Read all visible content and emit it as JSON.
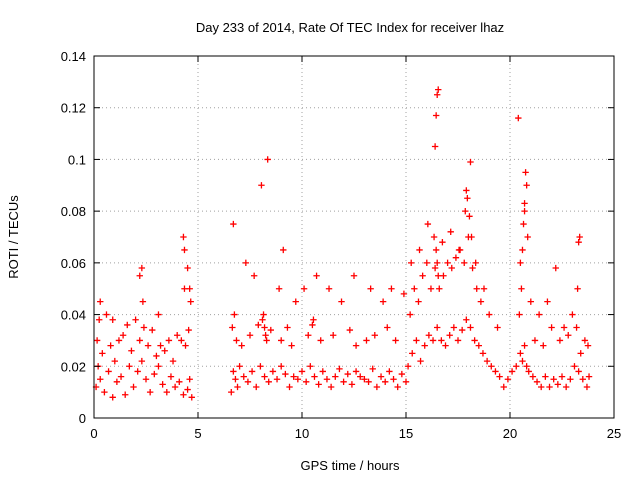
{
  "chart_data": {
    "type": "scatter",
    "title": "Day 233 of 2014, Rate Of TEC Index for receiver lhaz",
    "xlabel": "GPS time / hours",
    "ylabel": "ROTI / TECUs",
    "xlim": [
      0,
      25
    ],
    "ylim": [
      0,
      0.14
    ],
    "xticks": [
      0,
      5,
      10,
      15,
      20,
      25
    ],
    "xtick_labels": [
      "0",
      "5",
      "10",
      "15",
      "20",
      "25"
    ],
    "yticks": [
      0,
      0.02,
      0.04,
      0.06,
      0.08,
      0.1,
      0.12,
      0.14
    ],
    "ytick_labels": [
      "0",
      "0.02",
      "0.04",
      "0.06",
      "0.08",
      "0.1",
      "0.12",
      "0.14"
    ],
    "grid": true,
    "marker": "plus",
    "color": "#ff0000",
    "series": [
      {
        "x": [
          0.1,
          0.2,
          0.3,
          0.5,
          0.7,
          0.9,
          1.1,
          1.3,
          1.5,
          1.7,
          1.9,
          2.1,
          2.3,
          2.5,
          2.7,
          2.9,
          3.1,
          3.3,
          3.5,
          3.7,
          3.9,
          4.1,
          4.3,
          4.5,
          4.6,
          4.7,
          0.15,
          0.4,
          0.8,
          1.0,
          1.4,
          1.8,
          2.2,
          2.4,
          2.6,
          3.0,
          3.4,
          3.8,
          4.2,
          4.4,
          4.55,
          0.25,
          0.6,
          1.2,
          1.6,
          2.0,
          2.35,
          2.8,
          3.2,
          3.6,
          4.0,
          4.35,
          4.65,
          0.3,
          0.9,
          2.2,
          2.3,
          3.1,
          4.3,
          4.35,
          4.5,
          4.6,
          6.6,
          6.7,
          6.8,
          6.9,
          7.0,
          7.2,
          7.4,
          7.6,
          7.8,
          8.0,
          8.2,
          8.4,
          8.6,
          8.8,
          9.0,
          9.2,
          9.4,
          9.6,
          9.8,
          10.0,
          10.2,
          10.4,
          10.6,
          10.8,
          11.0,
          11.2,
          11.4,
          11.6,
          11.8,
          12.0,
          12.2,
          12.4,
          12.6,
          12.8,
          13.0,
          13.2,
          13.4,
          13.6,
          13.8,
          14.0,
          14.2,
          14.4,
          14.6,
          14.8,
          15.0,
          6.65,
          6.75,
          6.85,
          7.1,
          7.5,
          7.9,
          8.1,
          8.15,
          8.2,
          8.25,
          8.3,
          8.5,
          9.0,
          9.3,
          9.5,
          10.3,
          10.5,
          10.55,
          10.9,
          11.5,
          12.3,
          12.6,
          13.1,
          13.5,
          14.1,
          14.5,
          6.7,
          7.3,
          7.7,
          8.05,
          8.35,
          8.9,
          9.1,
          9.7,
          10.1,
          10.7,
          11.3,
          11.9,
          12.5,
          13.3,
          13.9,
          14.3,
          14.9,
          15.1,
          15.3,
          15.5,
          15.7,
          15.9,
          16.1,
          16.3,
          16.5,
          16.7,
          16.9,
          17.1,
          17.3,
          17.5,
          17.7,
          17.9,
          18.1,
          18.3,
          18.5,
          18.7,
          18.9,
          19.1,
          19.3,
          19.5,
          15.2,
          15.4,
          15.6,
          15.8,
          16.0,
          16.2,
          16.4,
          16.45,
          16.5,
          16.55,
          16.6,
          16.8,
          17.0,
          17.2,
          17.4,
          17.6,
          17.8,
          18.0,
          18.2,
          18.4,
          18.6,
          15.25,
          15.65,
          16.05,
          16.35,
          16.75,
          17.15,
          17.55,
          17.85,
          17.95,
          18.05,
          18.15,
          18.35,
          18.75,
          19.0,
          19.4,
          16.45,
          16.5,
          16.55,
          16.4,
          17.9,
          18.1,
          19.7,
          19.9,
          20.1,
          20.3,
          20.5,
          20.6,
          20.7,
          20.8,
          20.9,
          21.1,
          21.3,
          21.5,
          21.7,
          21.9,
          22.1,
          22.3,
          22.5,
          22.7,
          22.9,
          23.1,
          23.3,
          23.5,
          23.7,
          23.8,
          20.45,
          20.55,
          20.7,
          20.75,
          20.8,
          20.85,
          21.0,
          21.4,
          21.8,
          22.2,
          22.6,
          23.0,
          23.25,
          23.3,
          23.35,
          23.6,
          20.4,
          20.5,
          20.6,
          20.65,
          20.7,
          21.2,
          21.6,
          22.0,
          22.4,
          22.8,
          23.2,
          23.4,
          23.75
        ],
        "y": [
          0.012,
          0.02,
          0.015,
          0.01,
          0.018,
          0.008,
          0.014,
          0.016,
          0.009,
          0.02,
          0.012,
          0.018,
          0.022,
          0.015,
          0.01,
          0.017,
          0.02,
          0.013,
          0.01,
          0.016,
          0.012,
          0.014,
          0.009,
          0.011,
          0.015,
          0.008,
          0.03,
          0.025,
          0.028,
          0.022,
          0.032,
          0.026,
          0.03,
          0.035,
          0.028,
          0.024,
          0.026,
          0.022,
          0.03,
          0.028,
          0.034,
          0.038,
          0.04,
          0.03,
          0.036,
          0.038,
          0.045,
          0.034,
          0.028,
          0.03,
          0.032,
          0.05,
          0.045,
          0.045,
          0.038,
          0.055,
          0.058,
          0.04,
          0.07,
          0.065,
          0.058,
          0.05,
          0.01,
          0.018,
          0.015,
          0.012,
          0.02,
          0.016,
          0.014,
          0.018,
          0.012,
          0.02,
          0.016,
          0.014,
          0.018,
          0.015,
          0.02,
          0.017,
          0.012,
          0.016,
          0.015,
          0.018,
          0.014,
          0.02,
          0.016,
          0.013,
          0.018,
          0.015,
          0.012,
          0.016,
          0.019,
          0.014,
          0.017,
          0.013,
          0.018,
          0.016,
          0.015,
          0.014,
          0.019,
          0.012,
          0.016,
          0.014,
          0.018,
          0.015,
          0.012,
          0.017,
          0.014,
          0.035,
          0.04,
          0.03,
          0.028,
          0.032,
          0.036,
          0.038,
          0.04,
          0.035,
          0.032,
          0.03,
          0.034,
          0.03,
          0.035,
          0.028,
          0.032,
          0.036,
          0.038,
          0.03,
          0.032,
          0.034,
          0.028,
          0.03,
          0.032,
          0.035,
          0.03,
          0.075,
          0.06,
          0.055,
          0.09,
          0.1,
          0.05,
          0.065,
          0.045,
          0.05,
          0.055,
          0.05,
          0.045,
          0.055,
          0.05,
          0.045,
          0.05,
          0.048,
          0.02,
          0.025,
          0.03,
          0.022,
          0.028,
          0.032,
          0.03,
          0.035,
          0.03,
          0.028,
          0.032,
          0.035,
          0.03,
          0.034,
          0.038,
          0.035,
          0.03,
          0.028,
          0.025,
          0.022,
          0.02,
          0.018,
          0.016,
          0.04,
          0.05,
          0.045,
          0.055,
          0.06,
          0.05,
          0.058,
          0.065,
          0.06,
          0.055,
          0.05,
          0.055,
          0.06,
          0.058,
          0.062,
          0.065,
          0.06,
          0.07,
          0.058,
          0.05,
          0.045,
          0.06,
          0.065,
          0.075,
          0.07,
          0.068,
          0.072,
          0.065,
          0.08,
          0.085,
          0.078,
          0.07,
          0.06,
          0.05,
          0.04,
          0.035,
          0.117,
          0.125,
          0.127,
          0.105,
          0.088,
          0.099,
          0.012,
          0.015,
          0.018,
          0.02,
          0.025,
          0.022,
          0.028,
          0.02,
          0.018,
          0.016,
          0.014,
          0.012,
          0.016,
          0.012,
          0.015,
          0.013,
          0.016,
          0.012,
          0.015,
          0.02,
          0.018,
          0.015,
          0.012,
          0.016,
          0.04,
          0.05,
          0.08,
          0.095,
          0.09,
          0.07,
          0.045,
          0.04,
          0.045,
          0.058,
          0.035,
          0.04,
          0.05,
          0.068,
          0.07,
          0.03,
          0.116,
          0.06,
          0.065,
          0.075,
          0.083,
          0.03,
          0.028,
          0.035,
          0.03,
          0.032,
          0.035,
          0.025,
          0.028
        ]
      }
    ]
  }
}
